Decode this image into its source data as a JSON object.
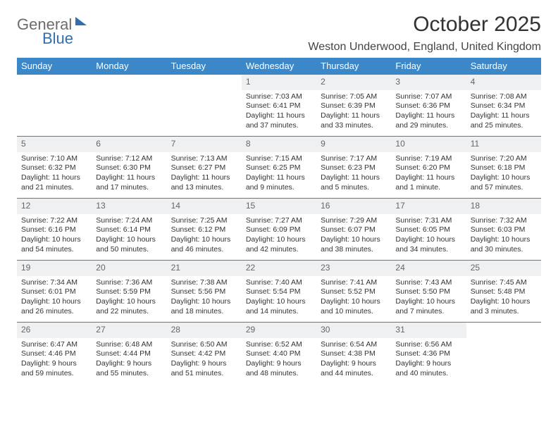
{
  "logo": {
    "general": "General",
    "blue": "Blue"
  },
  "title": "October 2025",
  "location": "Weston Underwood, England, United Kingdom",
  "colors": {
    "header_bg": "#3c87c7",
    "header_text": "#ffffff",
    "daynum_bg": "#eef0f2",
    "border": "#4a7bb5",
    "body_text": "#333333",
    "logo_gray": "#6c6c6c",
    "logo_blue": "#2f6fb0"
  },
  "typography": {
    "title_fontsize": 30,
    "location_fontsize": 16,
    "th_fontsize": 13,
    "cell_fontsize": 10.5
  },
  "weekdays": [
    "Sunday",
    "Monday",
    "Tuesday",
    "Wednesday",
    "Thursday",
    "Friday",
    "Saturday"
  ],
  "weeks": [
    [
      null,
      null,
      null,
      {
        "n": "1",
        "sr": "Sunrise: 7:03 AM",
        "ss": "Sunset: 6:41 PM",
        "dl": "Daylight: 11 hours and 37 minutes."
      },
      {
        "n": "2",
        "sr": "Sunrise: 7:05 AM",
        "ss": "Sunset: 6:39 PM",
        "dl": "Daylight: 11 hours and 33 minutes."
      },
      {
        "n": "3",
        "sr": "Sunrise: 7:07 AM",
        "ss": "Sunset: 6:36 PM",
        "dl": "Daylight: 11 hours and 29 minutes."
      },
      {
        "n": "4",
        "sr": "Sunrise: 7:08 AM",
        "ss": "Sunset: 6:34 PM",
        "dl": "Daylight: 11 hours and 25 minutes."
      }
    ],
    [
      {
        "n": "5",
        "sr": "Sunrise: 7:10 AM",
        "ss": "Sunset: 6:32 PM",
        "dl": "Daylight: 11 hours and 21 minutes."
      },
      {
        "n": "6",
        "sr": "Sunrise: 7:12 AM",
        "ss": "Sunset: 6:30 PM",
        "dl": "Daylight: 11 hours and 17 minutes."
      },
      {
        "n": "7",
        "sr": "Sunrise: 7:13 AM",
        "ss": "Sunset: 6:27 PM",
        "dl": "Daylight: 11 hours and 13 minutes."
      },
      {
        "n": "8",
        "sr": "Sunrise: 7:15 AM",
        "ss": "Sunset: 6:25 PM",
        "dl": "Daylight: 11 hours and 9 minutes."
      },
      {
        "n": "9",
        "sr": "Sunrise: 7:17 AM",
        "ss": "Sunset: 6:23 PM",
        "dl": "Daylight: 11 hours and 5 minutes."
      },
      {
        "n": "10",
        "sr": "Sunrise: 7:19 AM",
        "ss": "Sunset: 6:20 PM",
        "dl": "Daylight: 11 hours and 1 minute."
      },
      {
        "n": "11",
        "sr": "Sunrise: 7:20 AM",
        "ss": "Sunset: 6:18 PM",
        "dl": "Daylight: 10 hours and 57 minutes."
      }
    ],
    [
      {
        "n": "12",
        "sr": "Sunrise: 7:22 AM",
        "ss": "Sunset: 6:16 PM",
        "dl": "Daylight: 10 hours and 54 minutes."
      },
      {
        "n": "13",
        "sr": "Sunrise: 7:24 AM",
        "ss": "Sunset: 6:14 PM",
        "dl": "Daylight: 10 hours and 50 minutes."
      },
      {
        "n": "14",
        "sr": "Sunrise: 7:25 AM",
        "ss": "Sunset: 6:12 PM",
        "dl": "Daylight: 10 hours and 46 minutes."
      },
      {
        "n": "15",
        "sr": "Sunrise: 7:27 AM",
        "ss": "Sunset: 6:09 PM",
        "dl": "Daylight: 10 hours and 42 minutes."
      },
      {
        "n": "16",
        "sr": "Sunrise: 7:29 AM",
        "ss": "Sunset: 6:07 PM",
        "dl": "Daylight: 10 hours and 38 minutes."
      },
      {
        "n": "17",
        "sr": "Sunrise: 7:31 AM",
        "ss": "Sunset: 6:05 PM",
        "dl": "Daylight: 10 hours and 34 minutes."
      },
      {
        "n": "18",
        "sr": "Sunrise: 7:32 AM",
        "ss": "Sunset: 6:03 PM",
        "dl": "Daylight: 10 hours and 30 minutes."
      }
    ],
    [
      {
        "n": "19",
        "sr": "Sunrise: 7:34 AM",
        "ss": "Sunset: 6:01 PM",
        "dl": "Daylight: 10 hours and 26 minutes."
      },
      {
        "n": "20",
        "sr": "Sunrise: 7:36 AM",
        "ss": "Sunset: 5:59 PM",
        "dl": "Daylight: 10 hours and 22 minutes."
      },
      {
        "n": "21",
        "sr": "Sunrise: 7:38 AM",
        "ss": "Sunset: 5:56 PM",
        "dl": "Daylight: 10 hours and 18 minutes."
      },
      {
        "n": "22",
        "sr": "Sunrise: 7:40 AM",
        "ss": "Sunset: 5:54 PM",
        "dl": "Daylight: 10 hours and 14 minutes."
      },
      {
        "n": "23",
        "sr": "Sunrise: 7:41 AM",
        "ss": "Sunset: 5:52 PM",
        "dl": "Daylight: 10 hours and 10 minutes."
      },
      {
        "n": "24",
        "sr": "Sunrise: 7:43 AM",
        "ss": "Sunset: 5:50 PM",
        "dl": "Daylight: 10 hours and 7 minutes."
      },
      {
        "n": "25",
        "sr": "Sunrise: 7:45 AM",
        "ss": "Sunset: 5:48 PM",
        "dl": "Daylight: 10 hours and 3 minutes."
      }
    ],
    [
      {
        "n": "26",
        "sr": "Sunrise: 6:47 AM",
        "ss": "Sunset: 4:46 PM",
        "dl": "Daylight: 9 hours and 59 minutes."
      },
      {
        "n": "27",
        "sr": "Sunrise: 6:48 AM",
        "ss": "Sunset: 4:44 PM",
        "dl": "Daylight: 9 hours and 55 minutes."
      },
      {
        "n": "28",
        "sr": "Sunrise: 6:50 AM",
        "ss": "Sunset: 4:42 PM",
        "dl": "Daylight: 9 hours and 51 minutes."
      },
      {
        "n": "29",
        "sr": "Sunrise: 6:52 AM",
        "ss": "Sunset: 4:40 PM",
        "dl": "Daylight: 9 hours and 48 minutes."
      },
      {
        "n": "30",
        "sr": "Sunrise: 6:54 AM",
        "ss": "Sunset: 4:38 PM",
        "dl": "Daylight: 9 hours and 44 minutes."
      },
      {
        "n": "31",
        "sr": "Sunrise: 6:56 AM",
        "ss": "Sunset: 4:36 PM",
        "dl": "Daylight: 9 hours and 40 minutes."
      },
      null
    ]
  ]
}
